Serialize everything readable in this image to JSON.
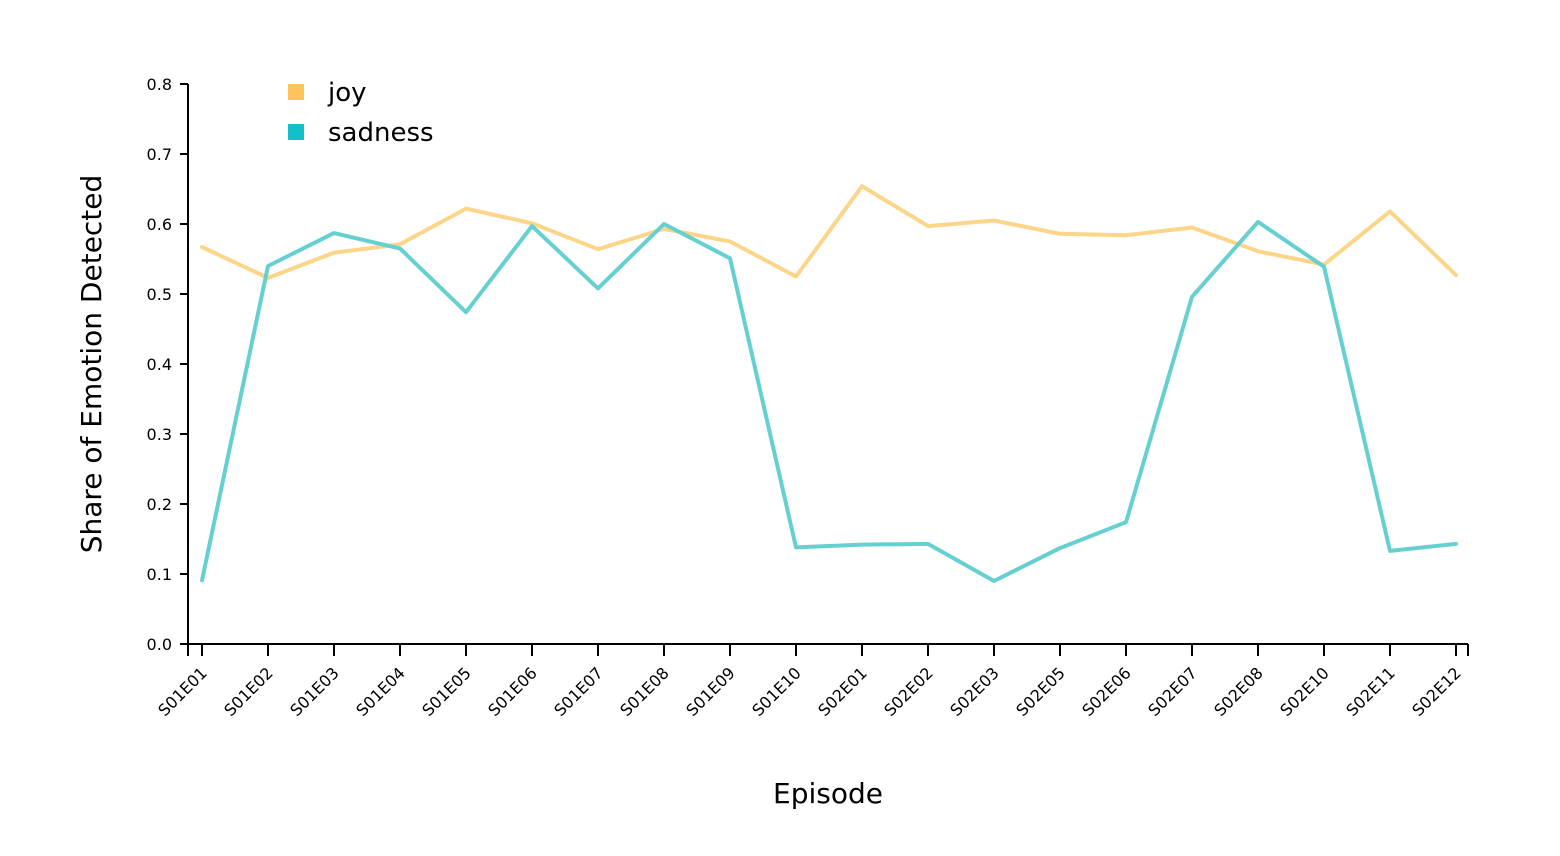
{
  "chart_data": {
    "type": "line",
    "title": "",
    "xlabel": "Episode",
    "ylabel": "Share of Emotion Detected",
    "ylim": [
      0,
      0.8
    ],
    "yticks": [
      "0.0",
      "0.1",
      "0.2",
      "0.3",
      "0.4",
      "0.5",
      "0.6",
      "0.7",
      "0.8"
    ],
    "grid": false,
    "legend_position": "top-left",
    "categories": [
      "S01E01",
      "S01E02",
      "S01E03",
      "S01E04",
      "S01E05",
      "S01E06",
      "S01E07",
      "S01E08",
      "S01E09",
      "S01E10",
      "S02E01",
      "S02E02",
      "S02E03",
      "S02E05",
      "S02E06",
      "S02E07",
      "S02E08",
      "S02E10",
      "S02E11",
      "S02E12"
    ],
    "series": [
      {
        "name": "joy",
        "color": "#FDD589",
        "legend_color": "#FDC35C",
        "values": [
          0.567,
          0.523,
          0.559,
          0.571,
          0.622,
          0.601,
          0.564,
          0.593,
          0.575,
          0.525,
          0.654,
          0.597,
          0.605,
          0.586,
          0.584,
          0.595,
          0.561,
          0.542,
          0.618,
          0.527
        ]
      },
      {
        "name": "sadness",
        "color": "#66D0D0",
        "legend_color": "#13BFC8",
        "values": [
          0.091,
          0.54,
          0.587,
          0.565,
          0.474,
          0.597,
          0.508,
          0.6,
          0.551,
          0.138,
          0.142,
          0.143,
          0.09,
          0.137,
          0.174,
          0.496,
          0.603,
          0.539,
          0.133,
          0.143
        ]
      }
    ]
  }
}
